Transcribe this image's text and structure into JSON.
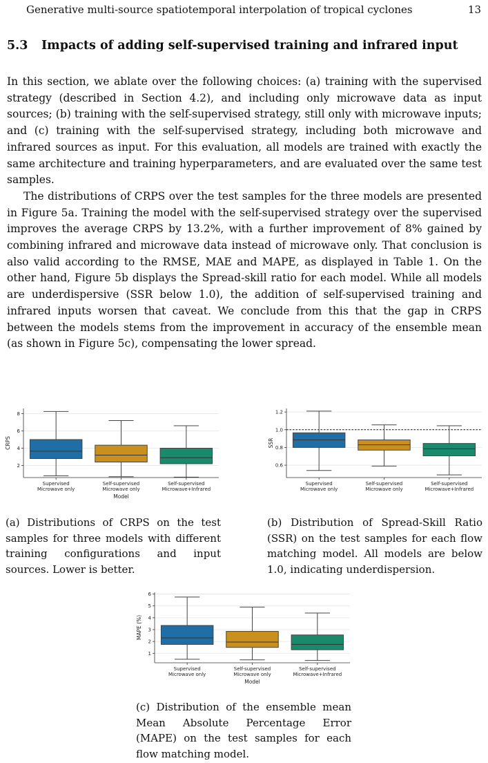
{
  "header": {
    "running_title": "Generative multi-source spatiotemporal interpolation of tropical cyclones",
    "page_number": "13"
  },
  "section": {
    "number": "5.3",
    "title": "Impacts of adding self-supervised training and infrared input"
  },
  "paragraphs": [
    "In this section, we ablate over the following choices: (a) training with the supervised strategy (described in Section 4.2), and including only microwave data as input sources; (b) training with the self-supervised strategy, still only with microwave inputs; and (c) training with the self-supervised strategy, including both microwave and infrared sources as input. For this evaluation, all models are trained with exactly the same architecture and training hyperparameters, and are evaluated over the same test samples.",
    "The distributions of CRPS over the test samples for the three models are presented in Figure 5a. Training the model with the self-supervised strategy over the supervised improves the average CRPS by 13.2%, with a further improvement of 8% gained by combining infrared and microwave data instead of microwave only. That conclusion is also valid according to the RMSE, MAE and MAPE, as displayed in Table 1. On the other hand, Figure 5b displays the Spread-skill ratio for each model. While all models are underdispersive (SSR below 1.0), the addition of self-supervised training and infrared inputs worsen that caveat. We conclude from this that the gap in CRPS between the models stems from the improvement in accuracy of the ensemble mean (as shown in Figure 5c), compensating the lower spread."
  ],
  "figures": {
    "a": {
      "caption": "(a) Distributions of CRPS on the test samples for three models with different training configurations and input sources. Lower is better."
    },
    "b": {
      "caption": "(b) Distribution of Spread-Skill Ratio (SSR) on the test samples for each flow matching model. All models are below 1.0, indicating underdispersion."
    },
    "c": {
      "caption": "(c) Distribution of the ensemble mean Mean Absolute Percentage Error (MAPE) on the test samples for each flow matching model."
    }
  },
  "colors": {
    "series_1": "#1f6fa6",
    "series_2": "#c9901e",
    "series_3": "#198a6b"
  },
  "chart_data": [
    {
      "id": "a",
      "type": "box",
      "categories": [
        [
          "Supervised",
          "Microwave only"
        ],
        [
          "Self-supervised",
          "Microwave only"
        ],
        [
          "Self-supervised",
          "Microwave+Infrared"
        ]
      ],
      "xlabel": "Model",
      "ylabel": "CRPS",
      "ylim": [
        0.6,
        8.6
      ],
      "yticks": [
        2,
        4,
        6,
        8
      ],
      "grid": true,
      "boxes": [
        {
          "whislo": 0.8,
          "q1": 2.8,
          "med": 3.65,
          "q3": 5.0,
          "whishi": 8.25
        },
        {
          "whislo": 0.7,
          "q1": 2.4,
          "med": 3.2,
          "q3": 4.35,
          "whishi": 7.2
        },
        {
          "whislo": 0.65,
          "q1": 2.2,
          "med": 2.9,
          "q3": 4.0,
          "whishi": 6.6
        }
      ]
    },
    {
      "id": "b",
      "type": "box",
      "categories": [
        [
          "Supervised",
          "Microwave only"
        ],
        [
          "Self-supervised",
          "Microwave only"
        ],
        [
          "Self-supervised",
          "Microwave+Infrared"
        ]
      ],
      "xlabel": "",
      "ylabel": "SSR",
      "ylim": [
        0.46,
        1.24
      ],
      "yticks": [
        0.6,
        0.8,
        1.0,
        1.2
      ],
      "grid": true,
      "reference_line": 1.0,
      "boxes": [
        {
          "whislo": 0.54,
          "q1": 0.8,
          "med": 0.885,
          "q3": 0.965,
          "whishi": 1.21
        },
        {
          "whislo": 0.59,
          "q1": 0.77,
          "med": 0.83,
          "q3": 0.885,
          "whishi": 1.055
        },
        {
          "whislo": 0.49,
          "q1": 0.705,
          "med": 0.785,
          "q3": 0.845,
          "whishi": 1.045
        }
      ]
    },
    {
      "id": "c",
      "type": "box",
      "categories": [
        [
          "Supervised",
          "Microwave only"
        ],
        [
          "Self-supervised",
          "Microwave only"
        ],
        [
          "Self-supervised",
          "Microwave+Infrared"
        ]
      ],
      "xlabel": "Model",
      "ylabel": "MAPE (%)",
      "ylim": [
        0.2,
        6.15
      ],
      "yticks": [
        1,
        2,
        3,
        4,
        5,
        6
      ],
      "grid": true,
      "boxes": [
        {
          "whislo": 0.5,
          "q1": 1.75,
          "med": 2.3,
          "q3": 3.35,
          "whishi": 5.75
        },
        {
          "whislo": 0.45,
          "q1": 1.5,
          "med": 1.95,
          "q3": 2.85,
          "whishi": 4.9
        },
        {
          "whislo": 0.4,
          "q1": 1.3,
          "med": 1.75,
          "q3": 2.55,
          "whishi": 4.4
        }
      ]
    }
  ]
}
